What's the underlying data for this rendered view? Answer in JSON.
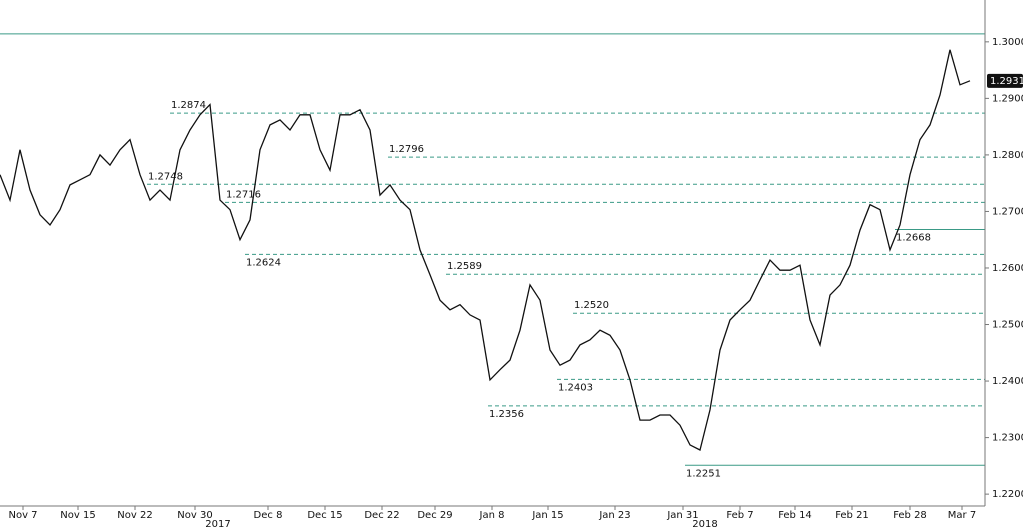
{
  "chart_data": {
    "type": "line",
    "color": "#111111",
    "x": [
      0,
      1,
      2,
      3,
      4,
      5,
      6,
      7,
      8,
      9,
      10,
      11,
      12,
      13,
      14,
      15,
      16,
      17,
      18,
      19,
      20,
      21,
      22,
      23,
      24,
      25,
      26,
      27,
      28,
      29,
      30,
      31,
      32,
      33,
      34,
      35,
      36,
      37,
      38,
      39,
      40,
      41,
      42,
      43,
      44,
      45,
      46,
      47,
      48,
      49,
      50,
      51,
      52,
      53,
      54,
      55,
      56,
      57,
      58,
      59,
      60,
      61,
      62,
      63,
      64,
      65,
      66,
      67,
      68,
      69,
      70,
      71,
      72,
      73,
      74,
      75,
      76,
      77,
      78,
      79,
      80,
      81,
      82,
      83,
      84,
      85,
      86,
      87,
      88,
      89,
      90,
      91,
      92,
      93,
      94,
      95,
      96,
      97
    ],
    "values": [
      1.2765,
      1.272,
      1.2809,
      1.2738,
      1.2694,
      1.2676,
      1.2703,
      1.2747,
      1.2756,
      1.2765,
      1.28,
      1.2782,
      1.2809,
      1.2827,
      1.2765,
      1.272,
      1.2738,
      1.272,
      1.2809,
      1.2844,
      1.2871,
      1.2889,
      1.272,
      1.2703,
      1.265,
      1.2685,
      1.2809,
      1.2853,
      1.2862,
      1.2844,
      1.2871,
      1.2871,
      1.2809,
      1.2773,
      1.2871,
      1.2871,
      1.288,
      1.2844,
      1.2729,
      1.2747,
      1.272,
      1.2703,
      1.2632,
      1.2588,
      1.2543,
      1.2526,
      1.2535,
      1.2517,
      1.2508,
      1.2402,
      1.242,
      1.2437,
      1.249,
      1.257,
      1.2543,
      1.2455,
      1.2428,
      1.2437,
      1.2464,
      1.2473,
      1.249,
      1.2481,
      1.2455,
      1.2402,
      1.2331,
      1.2331,
      1.234,
      1.234,
      1.2322,
      1.2287,
      1.2278,
      1.2349,
      1.2455,
      1.2508,
      1.2526,
      1.2543,
      1.2579,
      1.2614,
      1.2596,
      1.2596,
      1.2605,
      1.2508,
      1.2464,
      1.2552,
      1.257,
      1.2605,
      1.2667,
      1.2712,
      1.2703,
      1.2632,
      1.2676,
      1.2765,
      1.2827,
      1.2853,
      1.2906,
      1.2986,
      1.2924,
      1.2931
    ],
    "xlim": [
      0,
      98.5
    ],
    "xticks": [
      {
        "value": 2.3,
        "label": "Nov 7"
      },
      {
        "value": 7.8,
        "label": "Nov 15"
      },
      {
        "value": 13.5,
        "label": "Nov 22"
      },
      {
        "value": 19.5,
        "label": "Nov 30"
      },
      {
        "value": 26.8,
        "label": "Dec 8"
      },
      {
        "value": 32.5,
        "label": "Dec 15"
      },
      {
        "value": 38.2,
        "label": "Dec 22"
      },
      {
        "value": 43.5,
        "label": "Dec 29"
      },
      {
        "value": 49.2,
        "label": "Jan 8"
      },
      {
        "value": 54.8,
        "label": "Jan 15"
      },
      {
        "value": 61.5,
        "label": "Jan 23"
      },
      {
        "value": 68.3,
        "label": "Jan 31"
      },
      {
        "value": 74,
        "label": "Feb 7"
      },
      {
        "value": 79.5,
        "label": "Feb 14"
      },
      {
        "value": 85.2,
        "label": "Feb 21"
      },
      {
        "value": 91,
        "label": "Feb 28"
      },
      {
        "value": 96.2,
        "label": "Mar 7"
      }
    ],
    "year_labels": [
      {
        "value": 21.8,
        "label": "2017"
      },
      {
        "value": 70.5,
        "label": "2018"
      }
    ],
    "ylim": [
      1.2179,
      1.3074
    ],
    "yticks": [
      {
        "value": 1.22,
        "label": "1.2200"
      },
      {
        "value": 1.23,
        "label": "1.2300"
      },
      {
        "value": 1.24,
        "label": "1.2400"
      },
      {
        "value": 1.25,
        "label": "1.2500"
      },
      {
        "value": 1.26,
        "label": "1.2600"
      },
      {
        "value": 1.27,
        "label": "1.2700"
      },
      {
        "value": 1.28,
        "label": "1.2800"
      },
      {
        "value": 1.29,
        "label": "1.2900"
      },
      {
        "value": 1.3,
        "label": "1.3000"
      }
    ],
    "levels": [
      {
        "value": 1.3014,
        "x": 0,
        "style": "solid"
      },
      {
        "value": 1.2874,
        "label": "1.2874",
        "x": 17,
        "style": "dashed"
      },
      {
        "value": 1.2748,
        "label": "1.2748",
        "x": 14.7,
        "style": "dashed"
      },
      {
        "value": 1.2716,
        "label": "1.2716",
        "x": 22.5,
        "style": "dashed"
      },
      {
        "value": 1.2624,
        "label": "1.2624",
        "x": 24.5,
        "style": "dashed"
      },
      {
        "value": 1.2796,
        "label": "1.2796",
        "x": 38.8,
        "style": "dashed"
      },
      {
        "value": 1.2589,
        "label": "1.2589",
        "x": 44.6,
        "style": "dashed"
      },
      {
        "value": 1.252,
        "label": "1.2520",
        "x": 57.3,
        "style": "dashed"
      },
      {
        "value": 1.2403,
        "label": "1.2403",
        "x": 55.7,
        "style": "dashed"
      },
      {
        "value": 1.2356,
        "label": "1.2356",
        "x": 48.8,
        "style": "dashed"
      },
      {
        "value": 1.2251,
        "label": "1.2251",
        "x": 68.5,
        "style": "solid"
      },
      {
        "value": 1.2668,
        "label": "1.2668",
        "x": 89.5,
        "style": "solid"
      }
    ]
  }
}
